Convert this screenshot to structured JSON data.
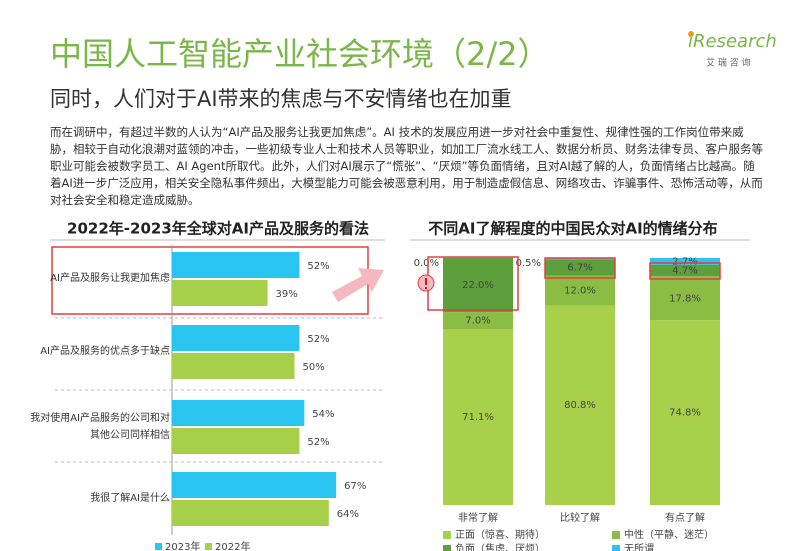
{
  "header": {
    "title": "中国人工智能产业社会环境（2/2）",
    "subtitle": "同时，人们对于AI带来的焦虑与不安情绪也在加重",
    "logo": "iResearch",
    "logo_sub": "艾 瑞 咨 询"
  },
  "body": "而在调研中，有超过半数的人认为“AI产品及服务让我更加焦虑”。AI 技术的发展应用进一步对社会中重复性、规律性强的工作岗位带来威胁，相较于自动化浪潮对蓝领的冲击，一些初级专业人士和技术人员等职业，如加工厂流水线工人、数据分析员、财务法律专员、客户服务等职业可能会被数字员工、AI Agent所取代。此外，人们对AI展示了“慌张”、“厌烦”等负面情绪，且对AI越了解的人，负面情绪占比越高。随着AI进一步广泛应用，相关安全隐私事件频出，大模型能力可能会被恶意利用，用于制造虚假信息、网络攻击、诈骗事件、恐怖活动等，从而对社会安全和稳定造成威胁。",
  "chart_data": [
    {
      "type": "hbar",
      "title": "2022年-2023年全球对AI产品及服务的看法",
      "categories": [
        "AI产品及服务让我更加焦虑",
        "AI产品及服务的优点多于缺点",
        "我对使用AI产品服务的公司和对其他公司同样相信",
        "我很了解AI是什么"
      ],
      "series": [
        {
          "name": "2023年",
          "color": "#29c4ef",
          "values": [
            52,
            52,
            54,
            67
          ],
          "value_labels": [
            "52%",
            "52%",
            "54%",
            "67%"
          ]
        },
        {
          "name": "2022年",
          "color": "#a6d04a",
          "values": [
            39,
            50,
            52,
            64
          ],
          "value_labels": [
            "39%",
            "50%",
            "52%",
            "64%"
          ]
        }
      ]
    },
    {
      "type": "stacked-bar",
      "title": "不同AI了解程度的中国民众对AI的情绪分布",
      "categories": [
        "非常了解",
        "比较了解",
        "有点了解"
      ],
      "series": [
        {
          "name": "正面（惊喜、期待）",
          "color": "#a9d04b",
          "values": [
            71.1,
            80.8,
            74.8
          ],
          "value_labels": [
            "71.1%",
            "80.8%",
            "74.8%"
          ]
        },
        {
          "name": "中性（平静、迷茫）",
          "color": "#8bbd45",
          "values": [
            7.0,
            12.0,
            17.8
          ],
          "value_labels": [
            "7.0%",
            "12.0%",
            "17.8%"
          ]
        },
        {
          "name": "负面（焦虑、厌烦）",
          "color": "#5c9f3b",
          "values": [
            22.0,
            6.7,
            4.7
          ],
          "value_labels": [
            "22.0%",
            "6.7%",
            "4.7%"
          ]
        },
        {
          "name": "无所谓",
          "color": "#2ec3ee",
          "values": [
            0.0,
            0.5,
            2.7
          ],
          "value_labels": [
            "0.0%",
            "0.5%",
            "2.7%"
          ]
        }
      ]
    }
  ]
}
